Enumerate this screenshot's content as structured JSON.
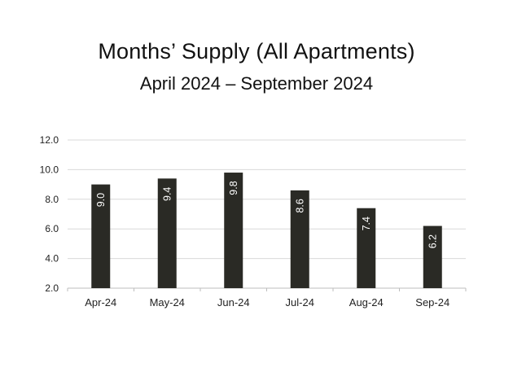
{
  "chart_data": {
    "type": "bar",
    "title": "Months’ Supply (All Apartments)",
    "subtitle": "April 2024 – September 2024",
    "categories": [
      "Apr-24",
      "May-24",
      "Jun-24",
      "Jul-24",
      "Aug-24",
      "Sep-24"
    ],
    "values": [
      9.0,
      9.4,
      9.8,
      8.6,
      7.4,
      6.2
    ],
    "data_labels": [
      "9.0",
      "9.4",
      "9.8",
      "8.6",
      "7.4",
      "6.2"
    ],
    "y_ticks": [
      "2.0",
      "4.0",
      "6.0",
      "8.0",
      "10.0",
      "12.0"
    ],
    "ylim": [
      2,
      12
    ],
    "xlabel": "",
    "ylabel": "",
    "grid": true,
    "legend": "none",
    "bar_color": "#2a2a25",
    "grid_color": "#d9d9d9"
  }
}
